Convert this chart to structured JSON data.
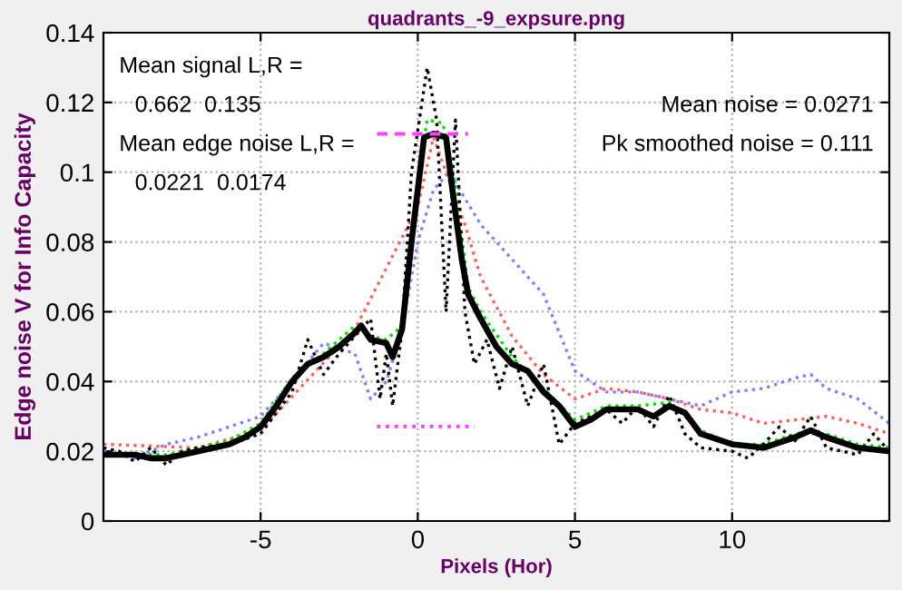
{
  "chart_data": {
    "type": "line",
    "title": "quadrants_-9_expsure.png",
    "xlabel": "Pixels (Hor)",
    "ylabel": "Edge noise V for Info Capacity",
    "xlim": [
      -10,
      15
    ],
    "ylim": [
      0,
      0.14
    ],
    "xticks": [
      -5,
      0,
      5,
      10
    ],
    "yticks": [
      0,
      0.02,
      0.04,
      0.06,
      0.08,
      0.1,
      0.12,
      0.14
    ],
    "grid": true,
    "marker": "none",
    "annotations": [
      "Mean signal L,R =",
      "0.662  0.135",
      "Mean edge noise L,R =",
      "0.0221  0.0174",
      "Mean noise = 0.0271",
      "Pk smoothed noise = 0.111"
    ],
    "series": [
      {
        "color": "#8080ff",
        "line_style": "dotted",
        "x": [
          -10,
          -9,
          -8,
          -7,
          -6,
          -5,
          -4,
          -3,
          -2,
          -1.5,
          -1,
          -0.5,
          0,
          0.5,
          1,
          2,
          3,
          4,
          5,
          6,
          7,
          8,
          9,
          10,
          11,
          12,
          12.5,
          13,
          14,
          15
        ],
        "values": [
          0.02,
          0.018,
          0.022,
          0.024,
          0.027,
          0.03,
          0.04,
          0.051,
          0.048,
          0.035,
          0.04,
          0.055,
          0.08,
          0.095,
          0.1,
          0.085,
          0.075,
          0.065,
          0.043,
          0.037,
          0.037,
          0.035,
          0.033,
          0.037,
          0.038,
          0.041,
          0.042,
          0.038,
          0.035,
          0.028
        ]
      },
      {
        "color": "#ff6060",
        "line_style": "dotted",
        "x": [
          -10,
          -7,
          -5,
          -2,
          0,
          0.5,
          1.5,
          2,
          3,
          4,
          5,
          6,
          7,
          8,
          9,
          10,
          11,
          12,
          13,
          14,
          15
        ],
        "values": [
          0.022,
          0.021,
          0.026,
          0.055,
          0.09,
          0.11,
          0.085,
          0.07,
          0.053,
          0.042,
          0.035,
          0.038,
          0.037,
          0.035,
          0.032,
          0.031,
          0.028,
          0.029,
          0.03,
          0.028,
          0.025
        ]
      },
      {
        "color": "#00dd00",
        "line_style": "dotted",
        "x": [
          -10,
          -9,
          -8,
          -7,
          -6,
          -5,
          -4,
          -3,
          -2,
          -1.5,
          -1,
          -0.5,
          0,
          0.3,
          0.8,
          1.2,
          1.6,
          2,
          3,
          4,
          5,
          6,
          7,
          8,
          9,
          10,
          11,
          12,
          13,
          14,
          15
        ],
        "values": [
          0.019,
          0.019,
          0.019,
          0.021,
          0.023,
          0.028,
          0.041,
          0.048,
          0.056,
          0.053,
          0.052,
          0.056,
          0.097,
          0.115,
          0.114,
          0.096,
          0.067,
          0.06,
          0.047,
          0.038,
          0.029,
          0.033,
          0.033,
          0.034,
          0.026,
          0.022,
          0.022,
          0.025,
          0.025,
          0.022,
          0.021
        ]
      },
      {
        "color": "#000000",
        "line_style": "dotted",
        "x": [
          -10,
          -9.5,
          -9,
          -8.5,
          -8,
          -7.5,
          -7,
          -6,
          -5,
          -4.5,
          -4,
          -3.5,
          -3,
          -2.5,
          -2,
          -1.5,
          -1.2,
          -1,
          -0.8,
          -0.5,
          -0.2,
          0.3,
          0.6,
          0.9,
          1.2,
          1.5,
          1.8,
          2.2,
          2.6,
          3,
          3.5,
          4,
          4.5,
          5,
          6,
          6.5,
          7,
          7.5,
          8,
          8.5,
          9,
          10,
          10.5,
          11,
          11.5,
          12,
          12.5,
          13,
          14,
          14.5,
          15
        ],
        "values": [
          0.021,
          0.02,
          0.017,
          0.021,
          0.016,
          0.02,
          0.021,
          0.022,
          0.025,
          0.031,
          0.037,
          0.052,
          0.042,
          0.048,
          0.053,
          0.058,
          0.035,
          0.048,
          0.033,
          0.055,
          0.1,
          0.13,
          0.115,
          0.06,
          0.115,
          0.06,
          0.045,
          0.052,
          0.038,
          0.05,
          0.033,
          0.045,
          0.022,
          0.028,
          0.032,
          0.028,
          0.033,
          0.027,
          0.036,
          0.025,
          0.021,
          0.02,
          0.018,
          0.022,
          0.027,
          0.023,
          0.03,
          0.021,
          0.019,
          0.025,
          0.02
        ]
      },
      {
        "color": "#000000",
        "line_style": "solid",
        "x": [
          -10,
          -9,
          -8.5,
          -8,
          -7,
          -6,
          -5.5,
          -5,
          -4.5,
          -4,
          -3.5,
          -3,
          -2.5,
          -2,
          -1.8,
          -1.5,
          -1,
          -0.8,
          -0.5,
          -0.2,
          0,
          0.2,
          0.5,
          0.9,
          1.1,
          1.4,
          1.6,
          2,
          2.5,
          3,
          3.5,
          4,
          4.5,
          5,
          5.5,
          6,
          7,
          7.5,
          8,
          8.5,
          9,
          10,
          11,
          12,
          12.5,
          13,
          14,
          15
        ],
        "values": [
          0.019,
          0.019,
          0.018,
          0.018,
          0.02,
          0.022,
          0.024,
          0.027,
          0.033,
          0.04,
          0.045,
          0.047,
          0.05,
          0.054,
          0.056,
          0.052,
          0.051,
          0.047,
          0.055,
          0.08,
          0.095,
          0.11,
          0.111,
          0.11,
          0.095,
          0.075,
          0.065,
          0.058,
          0.05,
          0.045,
          0.043,
          0.037,
          0.033,
          0.027,
          0.029,
          0.032,
          0.032,
          0.03,
          0.033,
          0.031,
          0.025,
          0.022,
          0.021,
          0.024,
          0.026,
          0.024,
          0.021,
          0.02
        ]
      },
      {
        "color": "#ff40ff",
        "line_style": "dashed",
        "x": [
          -1.3,
          1.6
        ],
        "values": [
          0.111,
          0.111
        ]
      },
      {
        "color": "#ff40ff",
        "line_style": "dotted",
        "x": [
          -1.3,
          1.8
        ],
        "values": [
          0.0271,
          0.0271
        ]
      }
    ]
  }
}
